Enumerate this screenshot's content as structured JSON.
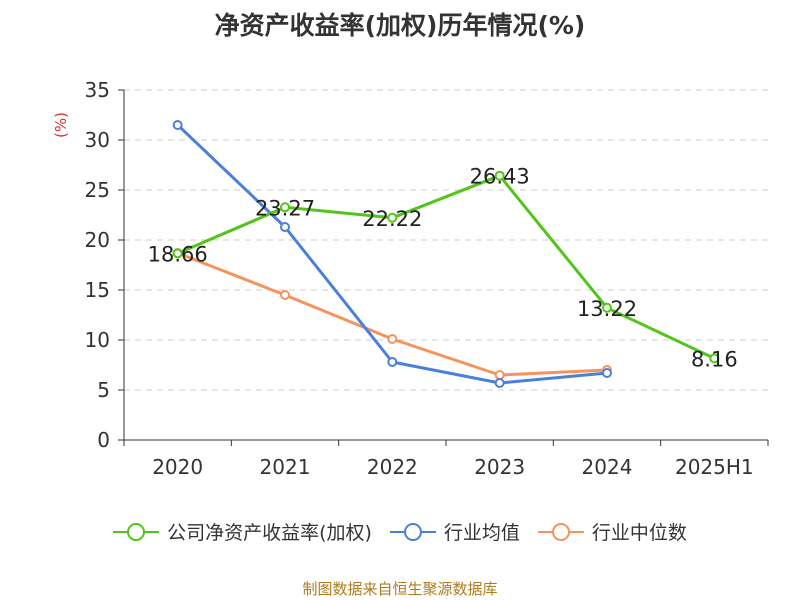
{
  "title": "净资产收益率(加权)历年情况(%)",
  "source": "制图数据来自恒生聚源数据库",
  "chart_data": {
    "type": "line",
    "title": "净资产收益率(加权)历年情况(%)",
    "ylabel": "(%)",
    "categories": [
      "2020",
      "2021",
      "2022",
      "2023",
      "2024",
      "2025H1"
    ],
    "ylim": [
      0,
      35
    ],
    "yticks": [
      0,
      5,
      10,
      15,
      20,
      25,
      30,
      35
    ],
    "grid": true,
    "legend_position": "bottom",
    "series": [
      {
        "name": "公司净资产收益率(加权)",
        "color": "#52c41a",
        "values": [
          18.66,
          23.27,
          22.22,
          26.43,
          13.22,
          8.16
        ],
        "labels": [
          "18.66",
          "23.27",
          "22.22",
          "26.43",
          "13.22",
          "8.16"
        ]
      },
      {
        "name": "行业均值",
        "color": "#4a7fdc",
        "values": [
          31.5,
          21.3,
          7.8,
          5.7,
          6.7,
          null
        ]
      },
      {
        "name": "行业中位数",
        "color": "#f5935c",
        "values": [
          18.7,
          14.5,
          10.1,
          6.5,
          7.0,
          null
        ]
      }
    ]
  }
}
